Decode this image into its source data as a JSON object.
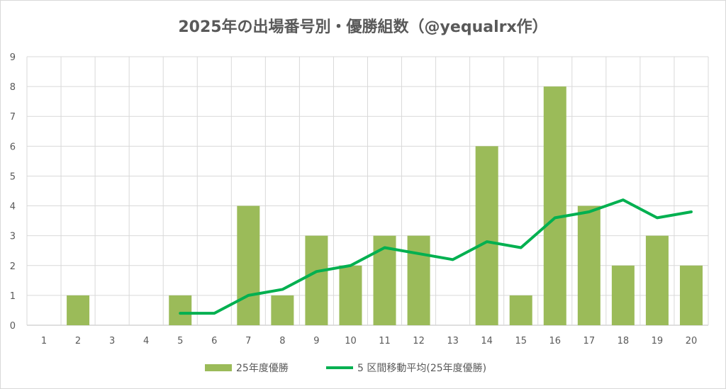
{
  "chart_data": {
    "type": "bar",
    "title": "2025年の出場番号別・優勝組数（@yequalrx作）",
    "xlabel": "",
    "ylabel": "",
    "ylim": [
      0,
      9
    ],
    "yticks": [
      "0",
      "1",
      "2",
      "3",
      "4",
      "5",
      "6",
      "7",
      "8",
      "9"
    ],
    "categories": [
      "1",
      "2",
      "3",
      "4",
      "5",
      "6",
      "7",
      "8",
      "9",
      "10",
      "11",
      "12",
      "13",
      "14",
      "15",
      "16",
      "17",
      "18",
      "19",
      "20"
    ],
    "grid": true,
    "legend_position": "bottom",
    "series": [
      {
        "name": "25年度優勝",
        "kind": "bar",
        "color": "#9bbb59",
        "values": [
          0,
          1,
          0,
          0,
          1,
          0,
          4,
          1,
          3,
          2,
          3,
          3,
          0,
          6,
          1,
          8,
          4,
          2,
          3,
          2
        ]
      },
      {
        "name": "5 区間移動平均(25年度優勝)",
        "kind": "line",
        "color": "#00b050",
        "values": [
          null,
          null,
          null,
          null,
          0.4,
          0.4,
          1.0,
          1.2,
          1.8,
          2.0,
          2.6,
          2.4,
          2.2,
          2.8,
          2.6,
          3.6,
          3.8,
          4.2,
          3.6,
          3.8
        ]
      }
    ]
  }
}
